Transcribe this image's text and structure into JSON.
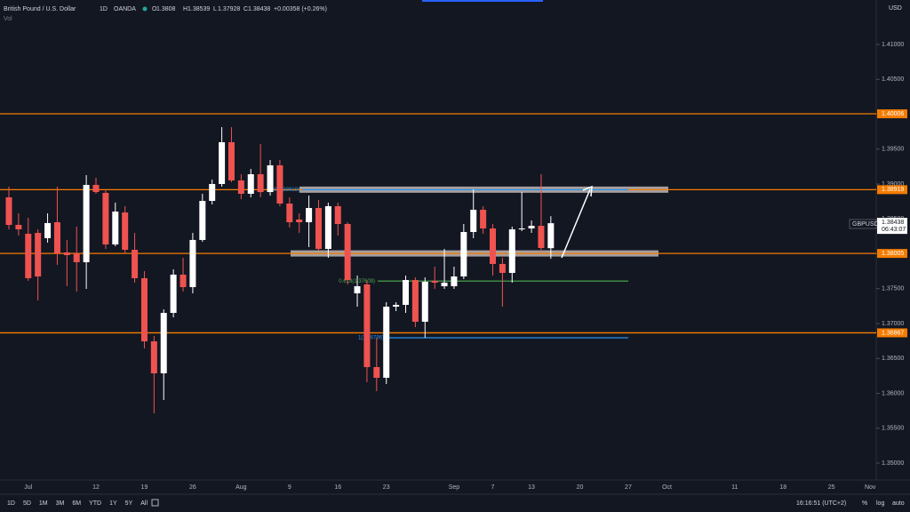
{
  "chart_data": {
    "type": "candlestick",
    "title": "British Pound / U.S. Dollar",
    "interval": "1D",
    "source": "OANDA",
    "ohlc_letters": [
      "O",
      "H",
      "L",
      "C"
    ],
    "change": "+0.00358 (+0.26%)",
    "volume_label": "Vol",
    "currency": "USD",
    "symbol": "GBPUSD",
    "countdown": "06:43:07",
    "up_color": "#ffffff",
    "down_color": "#ef5350",
    "categories": [
      null,
      null,
      "Jul",
      null,
      null,
      null,
      null,
      null,
      null,
      "12",
      null,
      null,
      null,
      null,
      "19",
      null,
      null,
      null,
      null,
      "26",
      null,
      null,
      null,
      null,
      "Aug",
      null,
      null,
      null,
      null,
      "9",
      null,
      null,
      null,
      null,
      "16",
      null,
      null,
      null,
      null,
      "23",
      null,
      null,
      null,
      null,
      null,
      null,
      "Sep",
      null,
      null,
      null,
      "7",
      null,
      null,
      null,
      "13",
      null,
      null,
      null,
      null,
      "20",
      null,
      null,
      null,
      null,
      "27",
      null,
      null,
      null,
      "Oct",
      null,
      null,
      null,
      null,
      null,
      null,
      "11",
      null,
      null,
      null,
      null,
      "18",
      null,
      null,
      null,
      null,
      "25",
      null,
      null,
      null,
      "Nov"
    ],
    "open": [
      1.38809,
      1.38414,
      1.38287,
      1.38299,
      1.38223,
      1.38452,
      1.38019,
      1.38006,
      1.37879,
      1.38987,
      1.38873,
      1.38134,
      1.38592,
      1.38057,
      1.3765,
      1.36745,
      1.36287,
      1.37153,
      1.37701,
      1.37522,
      1.38198,
      1.38758,
      1.39,
      1.39599,
      1.39051,
      1.3886,
      1.3914,
      1.38885,
      1.39268,
      1.3872,
      1.38491,
      1.38452,
      1.38656,
      1.3807,
      1.38682,
      1.38427,
      1.37433,
      1.37561,
      1.36376,
      1.36223,
      1.37242,
      1.37268,
      1.37624,
      1.37026,
      1.37612,
      1.37535,
      1.37535,
      1.37675,
      1.38312,
      1.38631,
      1.38363,
      1.37854,
      1.37726,
      1.3835,
      1.38363,
      1.38401,
      1.3808,
      null,
      null,
      null,
      null,
      null,
      null,
      null,
      null,
      null,
      null,
      null,
      null,
      null,
      null,
      null,
      null,
      null,
      null,
      null,
      null,
      null,
      null,
      null,
      null,
      null,
      null,
      null,
      null,
      null,
      null,
      null,
      null,
      null
    ],
    "high": [
      1.38962,
      1.3858,
      1.38516,
      1.3835,
      1.3858,
      1.38962,
      1.38198,
      1.38389,
      1.39127,
      1.39089,
      1.38924,
      1.38733,
      1.38682,
      1.38299,
      1.37752,
      1.36822,
      1.37204,
      1.37777,
      1.37943,
      1.38299,
      1.3886,
      1.39064,
      1.39815,
      1.39815,
      1.3914,
      1.39217,
      1.39573,
      1.39344,
      1.39344,
      1.38809,
      1.3858,
      1.38834,
      1.38771,
      1.38733,
      1.38733,
      1.38452,
      1.37688,
      1.37612,
      1.36796,
      1.37306,
      1.37306,
      1.37688,
      1.37662,
      1.37662,
      1.37815,
      1.3807,
      1.37815,
      1.38427,
      1.38924,
      1.38682,
      1.38427,
      1.37943,
      1.38389,
      1.38885,
      1.38478,
      1.3914,
      1.38539,
      null,
      null,
      null,
      null,
      null,
      null,
      null,
      null,
      null,
      null,
      null,
      null,
      null,
      null,
      null,
      null,
      null,
      null,
      null,
      null,
      null,
      null,
      null,
      null,
      null,
      null,
      null,
      null,
      null,
      null,
      null,
      null,
      null
    ],
    "low": [
      1.3835,
      1.38261,
      1.37612,
      1.37331,
      1.38159,
      1.37841,
      1.37535,
      1.37459,
      1.37497,
      1.3886,
      1.3807,
      1.38108,
      1.38006,
      1.37586,
      1.36643,
      1.35713,
      1.35905,
      1.37089,
      1.37459,
      1.37433,
      1.38172,
      1.38707,
      1.38962,
      1.39026,
      1.38783,
      1.38809,
      1.38809,
      1.38834,
      1.38682,
      1.38376,
      1.38299,
      1.38096,
      1.38045,
      1.37943,
      1.38261,
      1.37561,
      1.37242,
      1.36159,
      1.36032,
      1.36134,
      1.37178,
      1.37153,
      1.36949,
      1.36796,
      1.37497,
      1.37497,
      1.37497,
      1.37637,
      1.38223,
      1.38287,
      1.37688,
      1.37242,
      1.37586,
      1.38325,
      1.38299,
      1.38032,
      1.37928,
      null,
      null,
      null,
      null,
      null,
      null,
      null,
      null,
      null,
      null,
      null,
      null,
      null,
      null,
      null,
      null,
      null,
      null,
      null,
      null,
      null,
      null,
      null,
      null,
      null,
      null,
      null,
      null,
      null,
      null,
      null,
      null,
      null
    ],
    "close": [
      1.38414,
      1.3835,
      1.3765,
      1.37675,
      1.3844,
      1.38006,
      1.37981,
      1.37879,
      1.38987,
      1.38885,
      1.38134,
      1.38605,
      1.38057,
      1.3765,
      1.36745,
      1.36287,
      1.37153,
      1.37701,
      1.37522,
      1.38198,
      1.38758,
      1.39,
      1.39599,
      1.39051,
      1.3886,
      1.3914,
      1.38885,
      1.39268,
      1.3872,
      1.38452,
      1.38452,
      1.38656,
      1.3807,
      1.38682,
      1.38427,
      1.37624,
      1.37535,
      1.36376,
      1.36223,
      1.37242,
      1.37268,
      1.37624,
      1.37026,
      1.37599,
      1.37586,
      1.37586,
      1.37675,
      1.38312,
      1.38631,
      1.38363,
      1.37854,
      1.37726,
      1.3835,
      1.38363,
      1.38401,
      1.38083,
      1.38438,
      null,
      null,
      null,
      null,
      null,
      null,
      null,
      null,
      null,
      null,
      null,
      null,
      null,
      null,
      null,
      null,
      null,
      null,
      null,
      null,
      null,
      null,
      null,
      null,
      null,
      null,
      null,
      null,
      null,
      null,
      null,
      null,
      null
    ],
    "ylim": [
      1.34758,
      1.41637
    ],
    "yticks": [
      {
        "value": 1.35,
        "label": "1.35000"
      },
      {
        "value": 1.355,
        "label": "1.35500"
      },
      {
        "value": 1.36,
        "label": "1.36000"
      },
      {
        "value": 1.365,
        "label": "1.36500"
      },
      {
        "value": 1.37,
        "label": "1.37000"
      },
      {
        "value": 1.375,
        "label": "1.37500"
      },
      {
        "value": 1.38,
        "label": "1.38000"
      },
      {
        "value": 1.385,
        "label": "1.38500"
      },
      {
        "value": 1.39,
        "label": "1.39000"
      },
      {
        "value": 1.395,
        "label": "1.39500"
      },
      {
        "value": 1.4,
        "label": "1.40000"
      },
      {
        "value": 1.405,
        "label": "1.40500"
      },
      {
        "value": 1.41,
        "label": "1.41000"
      }
    ],
    "level_color": "#f57c00",
    "levels": [
      1.40006,
      1.38919,
      1.38005,
      1.36867
    ],
    "fib_levels": [
      {
        "label": "0(1.38919)",
        "value": 1.38919,
        "color": "#2196f3"
      },
      {
        "label": "0.618(1.37609)",
        "value": 1.37609,
        "color": "#4caf50"
      },
      {
        "label": "1(1.36796)",
        "value": 1.36796,
        "color": "#2196f3"
      }
    ]
  },
  "toolbar": {
    "ranges": [
      "1D",
      "5D",
      "1M",
      "3M",
      "6M",
      "YTD",
      "1Y",
      "5Y",
      "All"
    ],
    "time": "16:16:51 (UTC+2)",
    "options": [
      "%",
      "log",
      "auto"
    ]
  }
}
